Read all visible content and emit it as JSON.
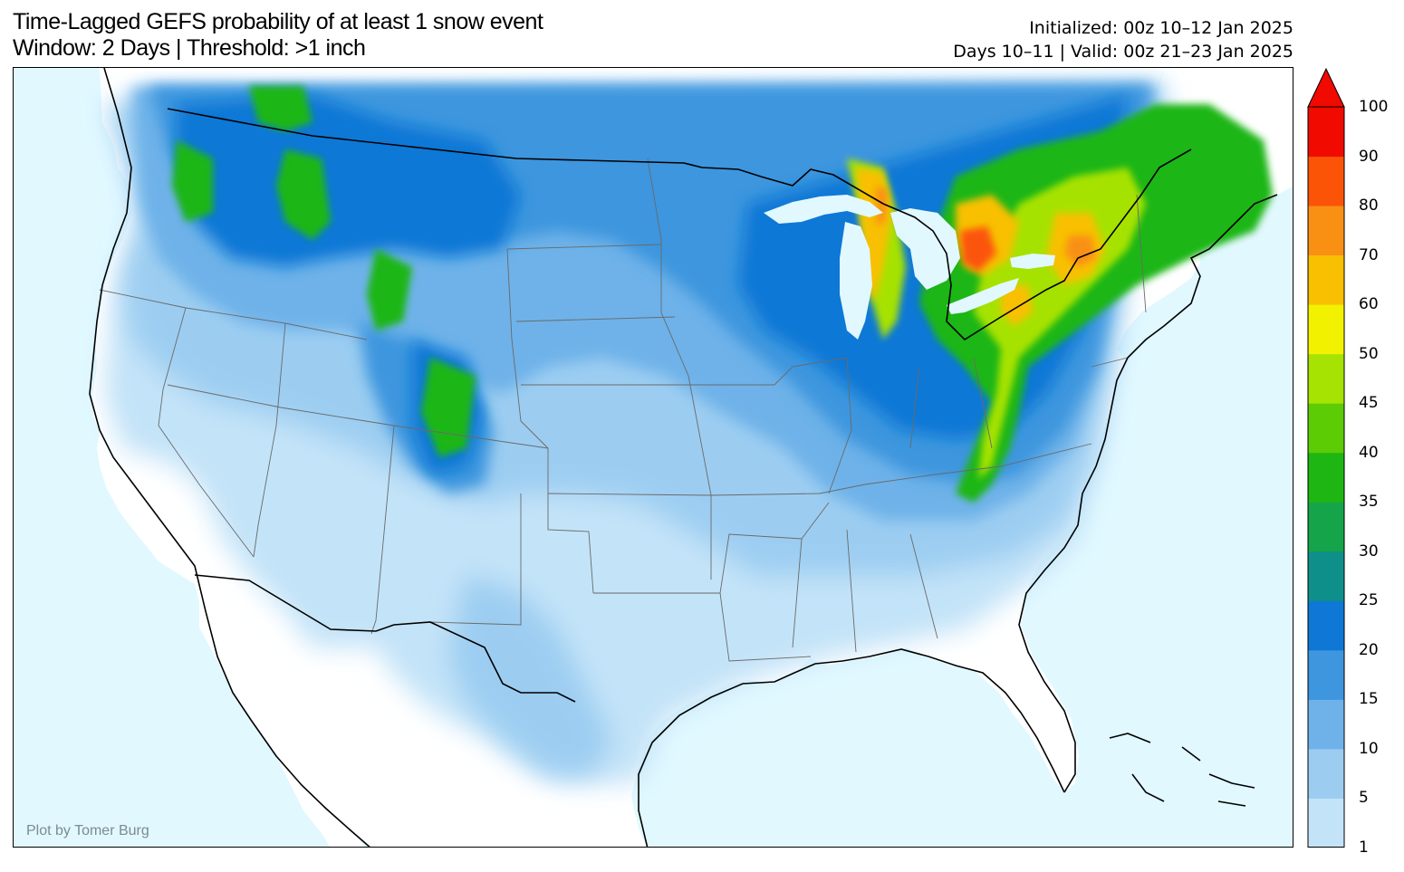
{
  "title": {
    "line1": "Time-Lagged GEFS probability of at least 1 snow event",
    "line2": "Window: 2 Days | Threshold: >1 inch"
  },
  "meta": {
    "initialized": "Initialized: 00z 10–12 Jan 2025",
    "valid": "Days 10–11 | Valid: 00z 21–23 Jan 2025"
  },
  "credit": "Plot by Tomer Burg",
  "colors": {
    "ocean": "#e1f8ff",
    "land": "#ffffff",
    "levels": [
      "#c3e3f8",
      "#9ccdf1",
      "#6eb2e9",
      "#3e96de",
      "#0f78d6",
      "#0f8f8a",
      "#16a44a",
      "#1eb613",
      "#5ccc05",
      "#a6e202",
      "#f2f200",
      "#f8c000",
      "#f99014",
      "#fb5407",
      "#f00a00"
    ]
  },
  "colorbar": {
    "labels": [
      "1",
      "5",
      "10",
      "15",
      "20",
      "25",
      "30",
      "35",
      "40",
      "45",
      "50",
      "60",
      "70",
      "80",
      "90",
      "100"
    ]
  }
}
